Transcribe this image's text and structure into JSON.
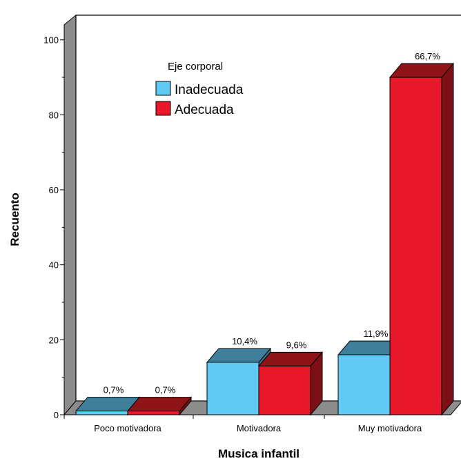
{
  "chart_data": {
    "type": "bar",
    "title": "",
    "xlabel": "Musica infantil",
    "ylabel": "Recuento",
    "ylim": [
      0,
      100
    ],
    "yticks": [
      0,
      20,
      40,
      60,
      80,
      100
    ],
    "categories": [
      "Poco motivadora",
      "Motivadora",
      "Muy motivadora"
    ],
    "legend": {
      "title": "Eje corporal",
      "position": "top-left"
    },
    "series": [
      {
        "name": "Inadecuada",
        "values": [
          1,
          14,
          16
        ],
        "labels": [
          "0,7%",
          "10,4%",
          "11,9%"
        ],
        "color": "#5fcbf5",
        "top_color": "#3f7f9c",
        "side_color": "#3a6f88"
      },
      {
        "name": "Adecuada",
        "values": [
          1,
          13,
          90
        ],
        "labels": [
          "0,7%",
          "9,6%",
          "66,7%"
        ],
        "color": "#e8182a",
        "top_color": "#8f1418",
        "side_color": "#7d1016"
      }
    ],
    "grid": false,
    "style": "3d"
  }
}
